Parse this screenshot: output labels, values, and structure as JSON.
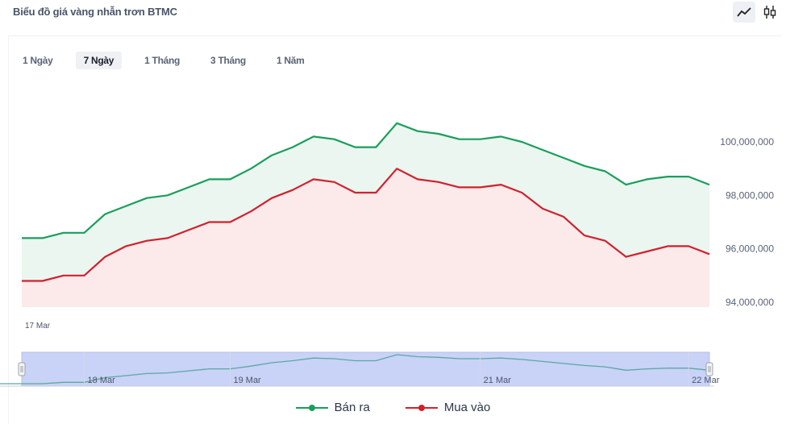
{
  "header": {
    "title": "Biểu đồ giá vàng nhẫn trơn BTMC"
  },
  "toolbar": {
    "line_icon": "line-chart-icon",
    "candle_icon": "candlestick-icon"
  },
  "range_tabs": [
    {
      "label": "1 Ngày",
      "active": false
    },
    {
      "label": "7 Ngày",
      "active": true
    },
    {
      "label": "1 Tháng",
      "active": false
    },
    {
      "label": "3 Tháng",
      "active": false
    },
    {
      "label": "1 Năm",
      "active": false
    }
  ],
  "colors": {
    "ban_ra": "#1a9e5c",
    "mua_vao": "#d0212f",
    "ban_ra_fill": "#eaf6ef",
    "mua_vao_fill": "#fce9e9",
    "navigator": "#c9d2f7"
  },
  "chart_data": {
    "type": "area",
    "y_ticks": [
      "100,000,000",
      "98,000,000",
      "96,000,000",
      "94,000,000"
    ],
    "y_tick_values": [
      100000000,
      98000000,
      96000000,
      94000000
    ],
    "ylim": [
      94000000,
      100000000
    ],
    "x_labels": [
      "17 Mar"
    ],
    "navigator_labels": [
      "18 Mar",
      "19 Mar",
      "21 Mar",
      "22 Mar"
    ],
    "navigator_label_index": [
      3,
      10,
      22,
      32
    ],
    "series": [
      {
        "name": "Bán ra",
        "values": [
          96400000,
          96400000,
          96600000,
          96600000,
          97300000,
          97600000,
          97900000,
          98000000,
          98300000,
          98600000,
          98600000,
          99000000,
          99500000,
          99800000,
          100200000,
          100100000,
          99800000,
          99800000,
          100700000,
          100400000,
          100300000,
          100100000,
          100100000,
          100200000,
          100000000,
          99700000,
          99400000,
          99100000,
          98900000,
          98400000,
          98600000,
          98700000,
          98700000,
          98400000
        ]
      },
      {
        "name": "Mua vào",
        "values": [
          94800000,
          94800000,
          95000000,
          95000000,
          95700000,
          96100000,
          96300000,
          96400000,
          96700000,
          97000000,
          97000000,
          97400000,
          97900000,
          98200000,
          98600000,
          98500000,
          98100000,
          98100000,
          99000000,
          98600000,
          98500000,
          98300000,
          98300000,
          98400000,
          98100000,
          97500000,
          97200000,
          96500000,
          96300000,
          95700000,
          95900000,
          96100000,
          96100000,
          95800000
        ]
      }
    ]
  }
}
